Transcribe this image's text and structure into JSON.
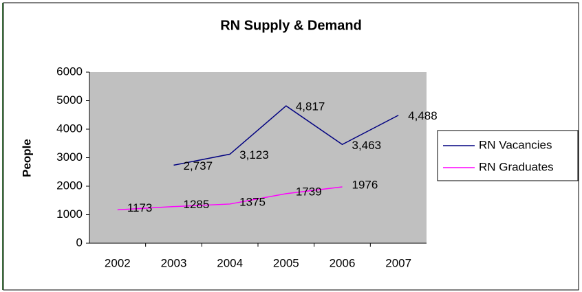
{
  "chart_data": {
    "type": "line",
    "title": "RN Supply & Demand",
    "y_label": "People",
    "categories": [
      "2002",
      "2003",
      "2004",
      "2005",
      "2006",
      "2007"
    ],
    "series": [
      {
        "name": "RN Vacancies",
        "color": "#000080",
        "values": [
          null,
          2737,
          3123,
          4817,
          3463,
          4488
        ],
        "value_labels": [
          null,
          "2,737",
          "3,123",
          "4,817",
          "3,463",
          "4,488"
        ]
      },
      {
        "name": "RN Graduates",
        "color": "#ff00ff",
        "values": [
          1173,
          1285,
          1375,
          1739,
          1976,
          null
        ]
      }
    ],
    "ylim": [
      0,
      6000
    ],
    "yticks": [
      0,
      1000,
      2000,
      3000,
      4000,
      5000,
      6000
    ],
    "legend": "right"
  }
}
